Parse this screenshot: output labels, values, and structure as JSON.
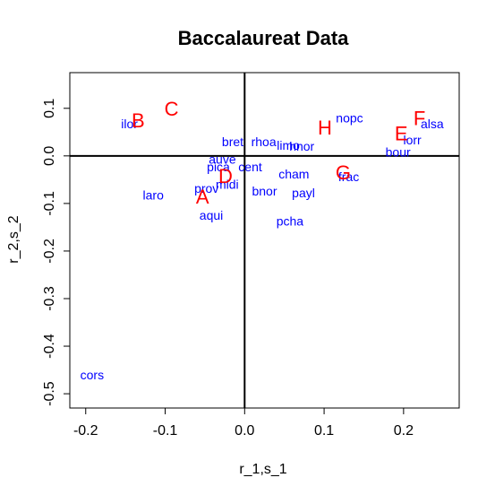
{
  "chart_data": {
    "type": "scatter",
    "title": "Baccalaureat Data",
    "xlabel": "r_1,s_1",
    "ylabel": "r_2,s_2",
    "xlim": [
      -0.22,
      0.27
    ],
    "ylim": [
      -0.53,
      0.175
    ],
    "xticks": [
      -0.2,
      -0.1,
      0.0,
      0.1,
      0.2
    ],
    "xtick_labels": [
      "-0.2",
      "-0.1",
      "0.0",
      "0.1",
      "0.2"
    ],
    "yticks": [
      -0.5,
      -0.4,
      -0.3,
      -0.2,
      -0.1,
      0.0,
      0.1
    ],
    "ytick_labels": [
      "-0.5",
      "-0.4",
      "-0.3",
      "-0.2",
      "-0.1",
      "0.0",
      "0.1"
    ],
    "grid": false,
    "reference_lines": {
      "x": 0,
      "y": 0
    },
    "series": [
      {
        "color": "#0000ff",
        "points": [
          {
            "label": "ilor",
            "x": -0.145,
            "y": 0.068
          },
          {
            "label": "bret",
            "x": -0.015,
            "y": 0.03
          },
          {
            "label": "rhoa",
            "x": 0.024,
            "y": 0.03
          },
          {
            "label": "limo",
            "x": 0.055,
            "y": 0.022
          },
          {
            "label": "hnor",
            "x": 0.072,
            "y": 0.02
          },
          {
            "label": "nopc",
            "x": 0.132,
            "y": 0.08
          },
          {
            "label": "alsa",
            "x": 0.236,
            "y": 0.068
          },
          {
            "label": "lorr",
            "x": 0.211,
            "y": 0.034
          },
          {
            "label": "bour",
            "x": 0.193,
            "y": 0.008
          },
          {
            "label": "auve",
            "x": -0.028,
            "y": -0.007
          },
          {
            "label": "pica",
            "x": -0.033,
            "y": -0.023
          },
          {
            "label": "cent",
            "x": 0.007,
            "y": -0.023
          },
          {
            "label": "cham",
            "x": 0.062,
            "y": -0.038
          },
          {
            "label": "frac",
            "x": 0.131,
            "y": -0.044
          },
          {
            "label": "prov",
            "x": -0.048,
            "y": -0.068
          },
          {
            "label": "midi",
            "x": -0.022,
            "y": -0.06
          },
          {
            "label": "bnor",
            "x": 0.025,
            "y": -0.074
          },
          {
            "label": "payl",
            "x": 0.074,
            "y": -0.078
          },
          {
            "label": "laro",
            "x": -0.115,
            "y": -0.082
          },
          {
            "label": "aqui",
            "x": -0.042,
            "y": -0.125
          },
          {
            "label": "pcha",
            "x": 0.057,
            "y": -0.137
          },
          {
            "label": "cors",
            "x": -0.192,
            "y": -0.46
          }
        ]
      },
      {
        "color": "#ff0000",
        "points": [
          {
            "label": "A",
            "x": -0.053,
            "y": -0.087
          },
          {
            "label": "B",
            "x": -0.134,
            "y": 0.073
          },
          {
            "label": "C",
            "x": -0.092,
            "y": 0.098
          },
          {
            "label": "D",
            "x": -0.024,
            "y": -0.044
          },
          {
            "label": "E",
            "x": 0.197,
            "y": 0.046
          },
          {
            "label": "F",
            "x": 0.22,
            "y": 0.078
          },
          {
            "label": "G",
            "x": 0.124,
            "y": -0.036
          },
          {
            "label": "H",
            "x": 0.101,
            "y": 0.058
          }
        ]
      }
    ]
  }
}
